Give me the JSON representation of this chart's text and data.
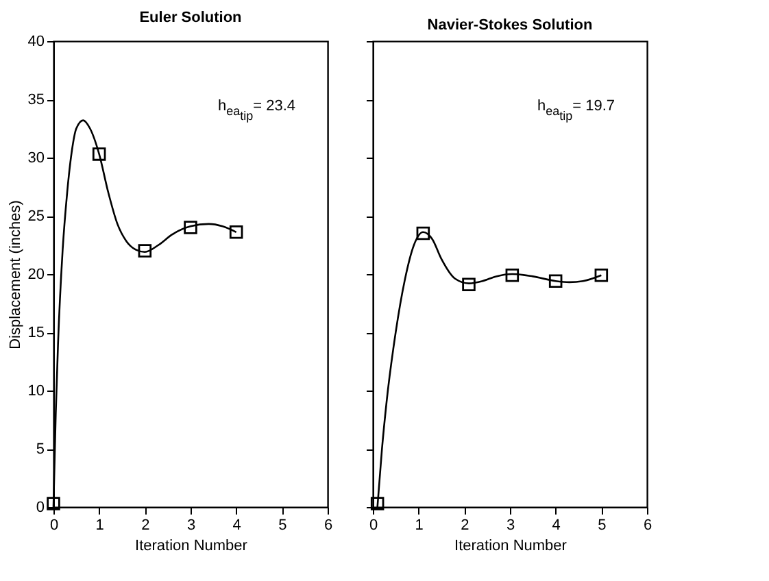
{
  "chart_data": [
    {
      "type": "line",
      "title": "Euler Solution",
      "xlabel": "Iteration Number",
      "ylabel": "Displacement (inches)",
      "annotations": [
        "h$_{ea}$$_{tip}$= 23.4"
      ],
      "xlim": [
        0,
        6
      ],
      "xticks": [
        0,
        1,
        2,
        3,
        4,
        5,
        6
      ],
      "ylim": [
        0,
        40
      ],
      "yticks": [
        0,
        5,
        10,
        15,
        20,
        25,
        30,
        35,
        40
      ],
      "grid": false,
      "line_style": "solid",
      "series": [
        {
          "type": "line",
          "color": "#000000",
          "x": [
            0,
            0.05,
            0.1,
            0.2,
            0.3,
            0.4,
            0.5,
            0.65,
            0.8,
            1,
            1.2,
            1.4,
            1.6,
            1.8,
            2,
            2.3,
            2.6,
            3,
            3.4,
            3.7,
            4
          ],
          "values": [
            0,
            8,
            14,
            22,
            27,
            30.5,
            32.5,
            33.2,
            32.5,
            30.3,
            27,
            24.3,
            22.8,
            22.1,
            21.9,
            22.5,
            23.4,
            24.1,
            24.3,
            24.1,
            23.6
          ]
        },
        {
          "type": "scatter",
          "marker": "square",
          "color": "#000000",
          "x": [
            0,
            1,
            2,
            3,
            4
          ],
          "values": [
            0.3,
            30.3,
            22,
            24,
            23.6
          ]
        }
      ]
    },
    {
      "type": "line",
      "title": "Navier-Stokes Solution",
      "xlabel": "Iteration Number",
      "annotations": [
        "h$_{ea}$$_{tip}$= 19.7"
      ],
      "xlim": [
        0,
        6
      ],
      "xticks": [
        0,
        1,
        2,
        3,
        4,
        5,
        6
      ],
      "ylim": [
        0,
        40
      ],
      "yticks": [
        0,
        5,
        10,
        15,
        20,
        25,
        30,
        35,
        40
      ],
      "tick_labels": "x",
      "grid": false,
      "line_style": "solid",
      "series": [
        {
          "type": "line",
          "color": "#000000",
          "x": [
            0.1,
            0.2,
            0.3,
            0.5,
            0.7,
            0.9,
            1.1,
            1.3,
            1.5,
            1.8,
            2.1,
            2.4,
            2.7,
            3.05,
            3.5,
            4,
            4.3,
            4.6,
            5
          ],
          "values": [
            0,
            5,
            9,
            15,
            19.5,
            22.5,
            23.6,
            23,
            21.3,
            19.6,
            19.2,
            19.4,
            19.8,
            20,
            19.8,
            19.4,
            19.3,
            19.4,
            19.9
          ]
        },
        {
          "type": "scatter",
          "marker": "square",
          "color": "#000000",
          "x": [
            0.1,
            1.1,
            2.1,
            3.05,
            4,
            5
          ],
          "values": [
            0.3,
            23.5,
            19.1,
            19.9,
            19.4,
            19.9
          ]
        }
      ]
    }
  ]
}
